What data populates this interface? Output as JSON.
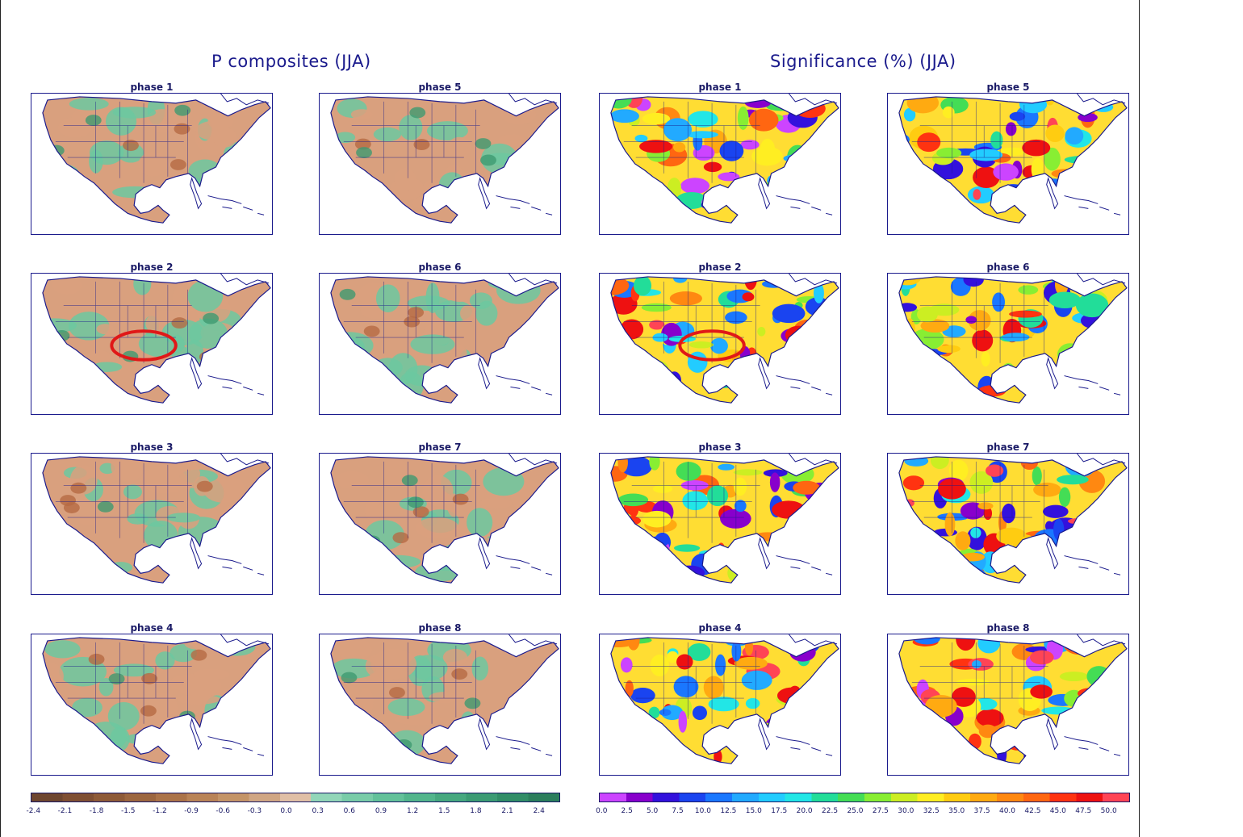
{
  "titles": {
    "left": "P composites (JJA)",
    "right": "Significance (%) (JJA)"
  },
  "left_panels": [
    {
      "label": "phase 1",
      "highlight": false
    },
    {
      "label": "phase 5",
      "highlight": false
    },
    {
      "label": "phase 2",
      "highlight": true
    },
    {
      "label": "phase 6",
      "highlight": false
    },
    {
      "label": "phase 3",
      "highlight": false
    },
    {
      "label": "phase 7",
      "highlight": false
    },
    {
      "label": "phase 4",
      "highlight": false
    },
    {
      "label": "phase 8",
      "highlight": false
    }
  ],
  "right_panels": [
    {
      "label": "phase 1",
      "highlight": false
    },
    {
      "label": "phase 5",
      "highlight": false
    },
    {
      "label": "phase 2",
      "highlight": true
    },
    {
      "label": "phase 6",
      "highlight": false
    },
    {
      "label": "phase 3",
      "highlight": false
    },
    {
      "label": "phase 7",
      "highlight": false
    },
    {
      "label": "phase 4",
      "highlight": false
    },
    {
      "label": "phase 8",
      "highlight": false
    }
  ],
  "colorbar_left": {
    "labels": [
      "-2.4",
      "-2.1",
      "-1.8",
      "-1.5",
      "-1.2",
      "-0.9",
      "-0.6",
      "-0.3",
      "0.0",
      "0.3",
      "0.6",
      "0.9",
      "1.2",
      "1.5",
      "1.8",
      "2.1",
      "2.4"
    ],
    "colors": [
      "#6e4630",
      "#7f4f33",
      "#8e5a38",
      "#9c6640",
      "#ab7349",
      "#b98357",
      "#c49468",
      "#d0a684",
      "#e0bfa6",
      "#92d6b8",
      "#79cca8",
      "#63c19a",
      "#52b58c",
      "#46a87f",
      "#3b9b73",
      "#318d67",
      "#2b7e5c"
    ]
  },
  "colorbar_right": {
    "labels": [
      "0.0",
      "2.5",
      "5.0",
      "7.5",
      "10.0",
      "12.5",
      "15.0",
      "17.5",
      "20.0",
      "22.5",
      "25.0",
      "27.5",
      "30.0",
      "32.5",
      "35.0",
      "37.5",
      "40.0",
      "42.5",
      "45.0",
      "47.5",
      "50.0"
    ],
    "colors": [
      "#cc44ff",
      "#8800cc",
      "#3311dd",
      "#1a44f0",
      "#1a77ff",
      "#22aaff",
      "#22ccff",
      "#22e6e6",
      "#22dd99",
      "#44dd55",
      "#88ee33",
      "#ccee22",
      "#ffee22",
      "#ffcc11",
      "#ffaa11",
      "#ff8811",
      "#ff6611",
      "#ff3311",
      "#ee1111",
      "#ff4455"
    ]
  },
  "map_colors": {
    "land_dry": "#d9a07e",
    "land_wet": "#6cc8a0",
    "land_wet_dark": "#3f9a70",
    "land_dry_dark": "#b56a44",
    "outline": "#1a1a8c",
    "highlight_ring": "#e01818"
  }
}
